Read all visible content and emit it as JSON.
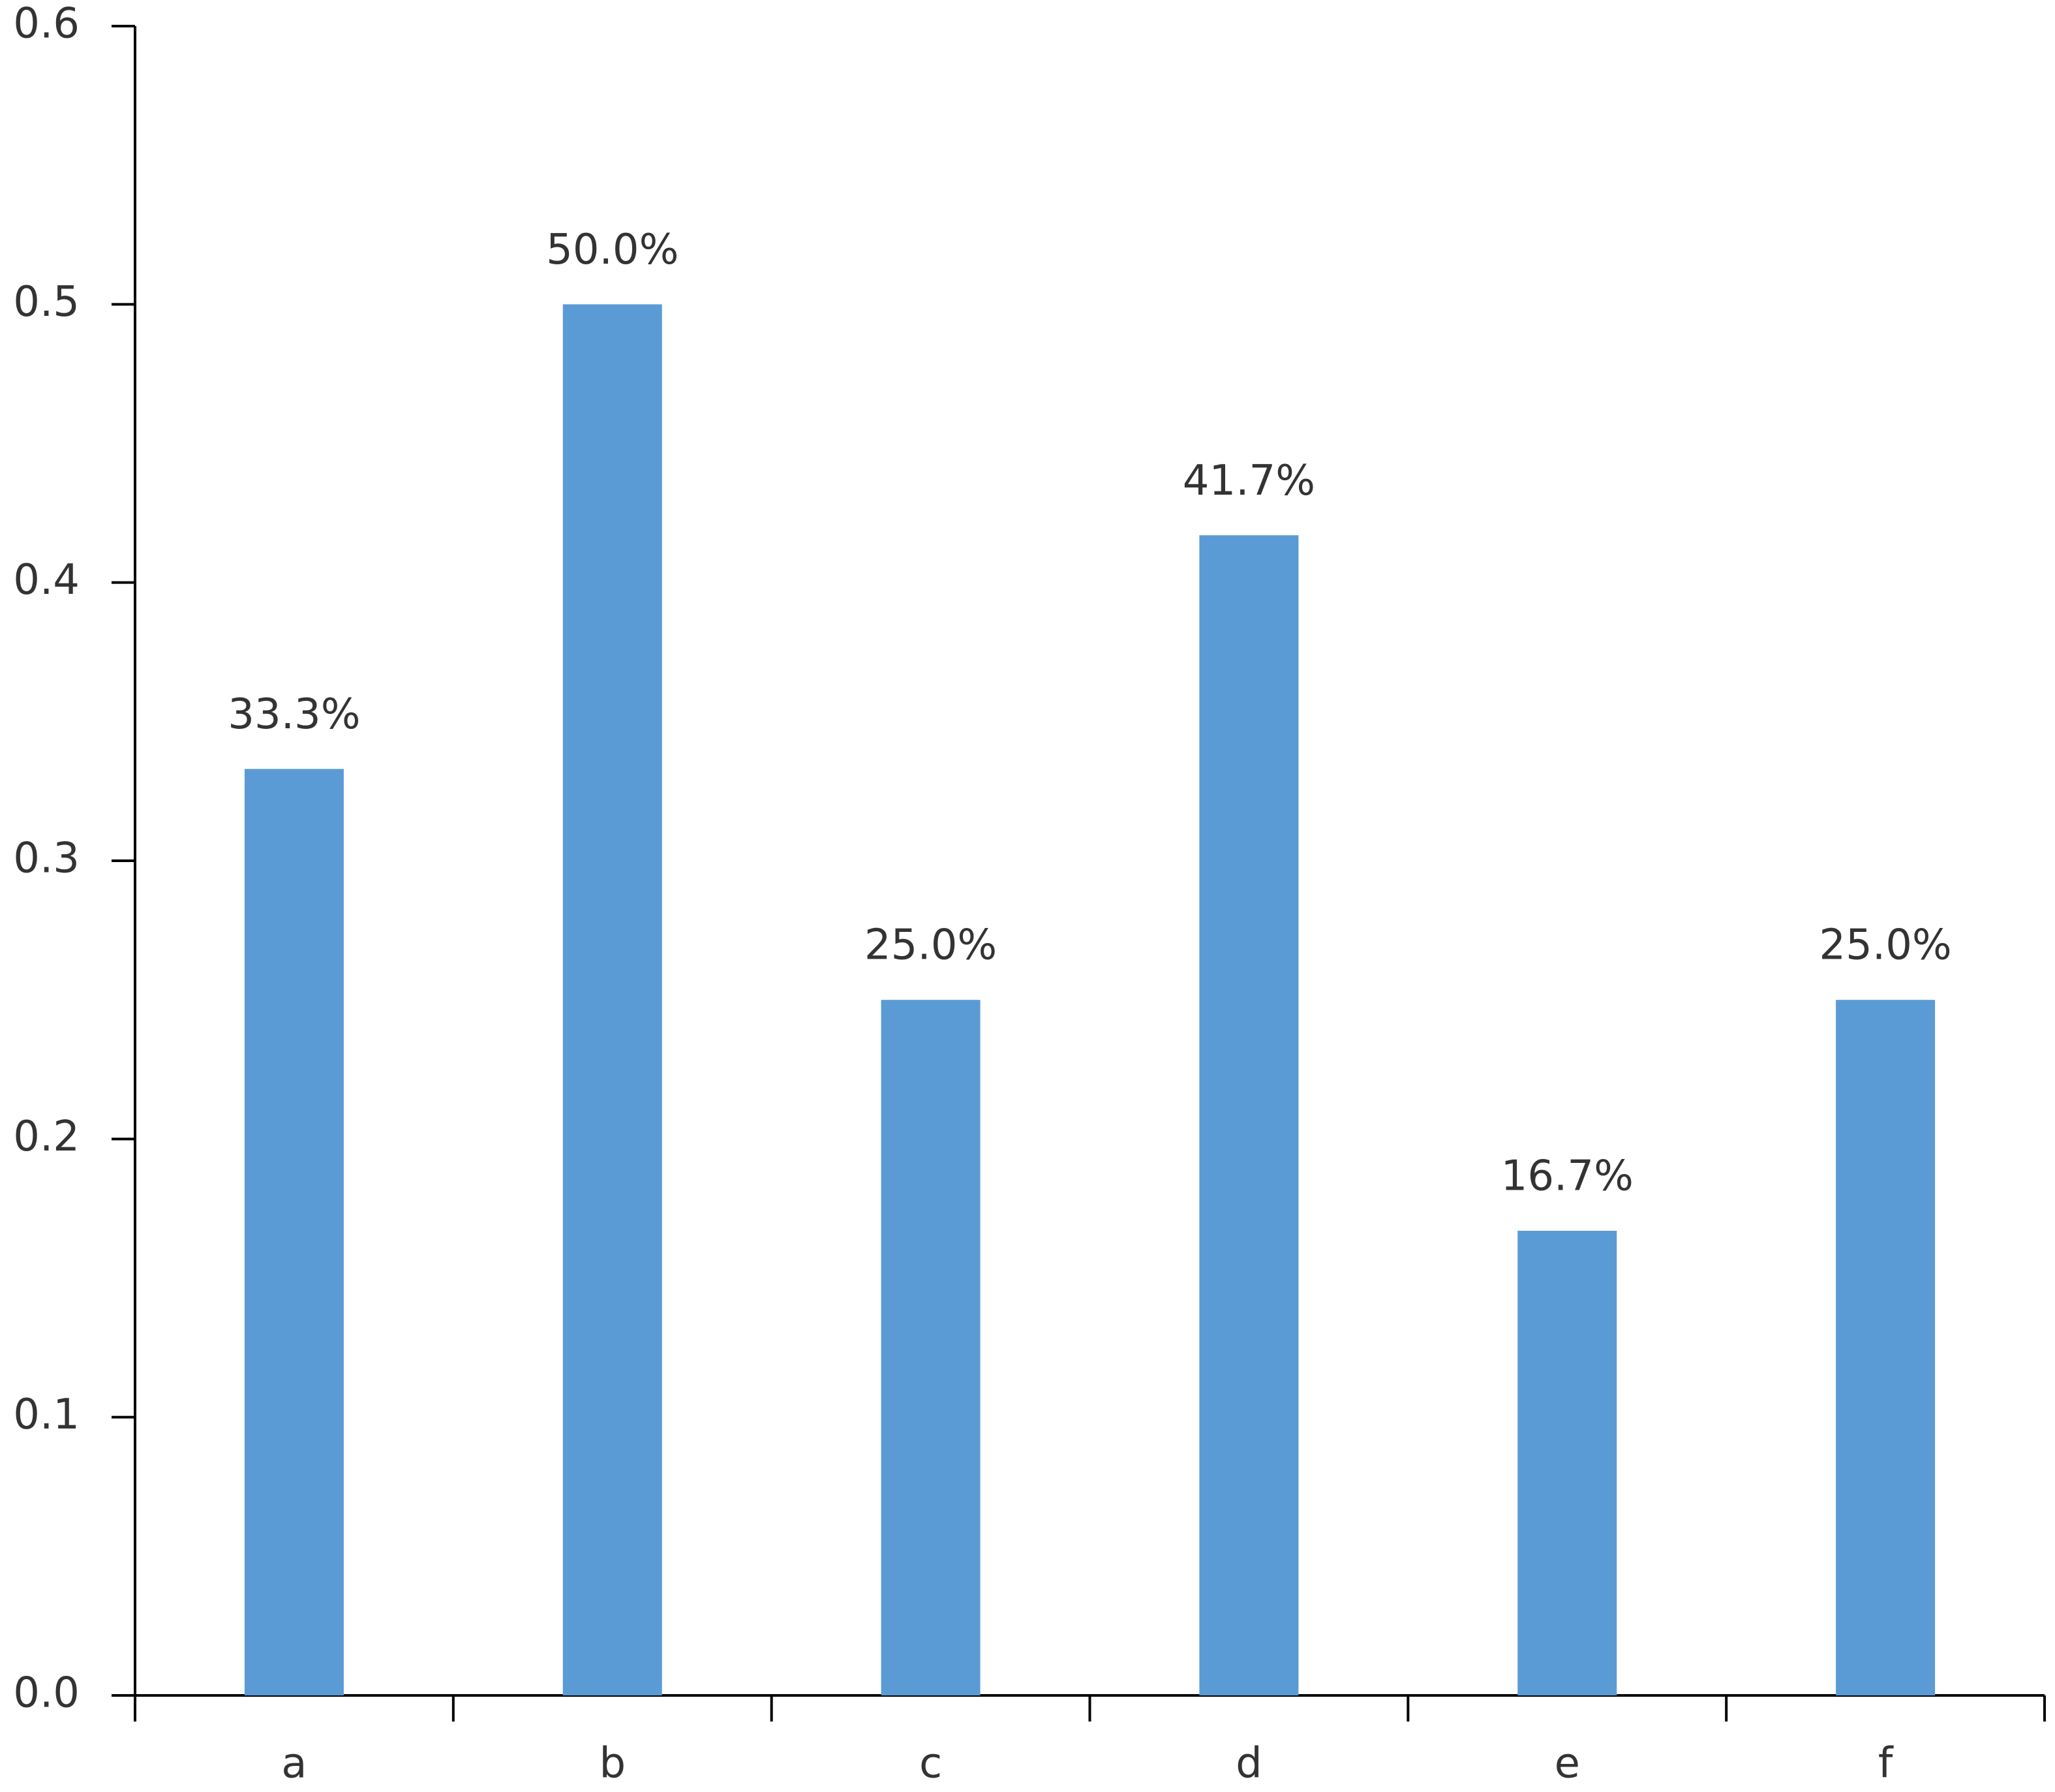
{
  "chart_data": {
    "type": "bar",
    "categories": [
      "a",
      "b",
      "c",
      "d",
      "e",
      "f"
    ],
    "values": [
      0.333,
      0.5,
      0.25,
      0.417,
      0.167,
      0.25
    ],
    "value_labels": [
      "33.3%",
      "50.0%",
      "25.0%",
      "41.7%",
      "16.7%",
      "25.0%"
    ],
    "color": "#5b9bd5",
    "ylim": [
      0,
      0.6
    ],
    "yticks": [
      {
        "value": 0,
        "label": "0.0"
      },
      0.1,
      0.2,
      0.3,
      0.4,
      0.5,
      0.6
    ],
    "grid": false
  }
}
